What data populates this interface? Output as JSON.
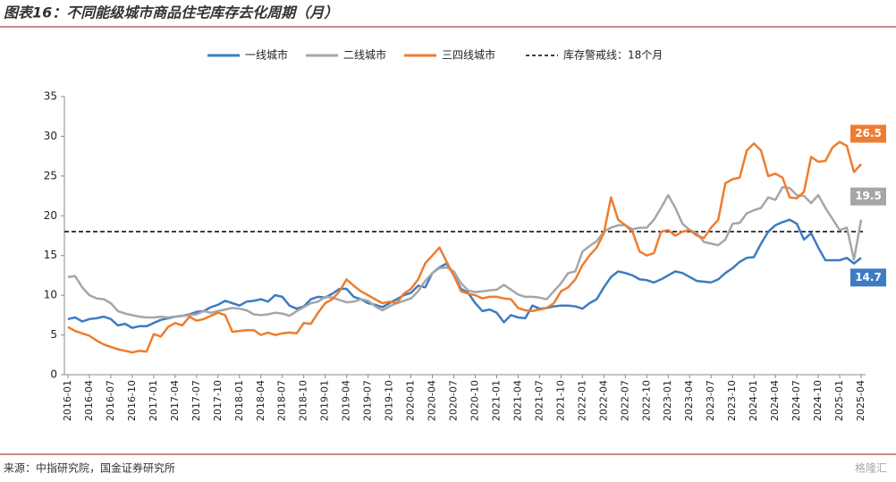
{
  "chart_data": {
    "type": "line",
    "title": "图表16：不同能级城市商品住宅库存去化周期（月）",
    "source": "来源：中指研究院，国金证券研究所",
    "watermark": "格隆汇",
    "reference_line": {
      "name": "库存警戒线：18个月",
      "value": 18
    },
    "categories": [
      "2016-01",
      null,
      null,
      "2016-04",
      null,
      null,
      "2016-07",
      null,
      null,
      "2016-10",
      null,
      null,
      "2017-01",
      null,
      null,
      "2017-04",
      null,
      null,
      "2017-07",
      null,
      null,
      "2017-10",
      null,
      null,
      "2018-01",
      null,
      null,
      "2018-04",
      null,
      null,
      "2018-07",
      null,
      null,
      "2018-10",
      null,
      null,
      "2019-01",
      null,
      null,
      "2019-04",
      null,
      null,
      "2019-07",
      null,
      null,
      "2019-10",
      null,
      null,
      "2020-01",
      null,
      null,
      "2020-04",
      null,
      null,
      "2020-07",
      null,
      null,
      "2020-10",
      null,
      null,
      "2021-01",
      null,
      null,
      "2021-04",
      null,
      null,
      "2021-07",
      null,
      null,
      "2021-10",
      null,
      null,
      "2022-01",
      null,
      null,
      "2022-04",
      null,
      null,
      "2022-07",
      null,
      null,
      "2022-10",
      null,
      null,
      "2023-01",
      null,
      null,
      "2023-04",
      null,
      null,
      "2023-07",
      null,
      null,
      "2023-10",
      null,
      null,
      "2024-01",
      null,
      null,
      "2024-04",
      null,
      null,
      "2024-07",
      null,
      null,
      "2024-10",
      null,
      null,
      "2025-01",
      null,
      null,
      "2025-04"
    ],
    "series": [
      {
        "name": "一线城市",
        "color": "#3e7cc1",
        "values": [
          7.0,
          7.2,
          6.7,
          7.0,
          7.1,
          7.3,
          7.0,
          6.2,
          6.4,
          5.9,
          6.1,
          6.1,
          6.5,
          6.9,
          7.1,
          7.3,
          7.4,
          7.6,
          7.9,
          8.0,
          8.5,
          8.8,
          9.3,
          9.0,
          8.7,
          9.2,
          9.3,
          9.5,
          9.2,
          10.0,
          9.8,
          8.7,
          8.3,
          8.6,
          9.5,
          9.8,
          9.7,
          10.2,
          10.8,
          10.8,
          9.8,
          9.5,
          9.0,
          8.8,
          8.5,
          9.0,
          9.5,
          10.0,
          10.3,
          11.2,
          11.0,
          12.8,
          13.5,
          14.0,
          12.5,
          10.8,
          10.3,
          9.0,
          8.0,
          8.2,
          7.8,
          6.6,
          7.5,
          7.2,
          7.1,
          8.7,
          8.3,
          8.4,
          8.6,
          8.7,
          8.7,
          8.6,
          8.3,
          9.0,
          9.5,
          11.0,
          12.3,
          13.0,
          12.8,
          12.5,
          12.0,
          11.9,
          11.6,
          12.0,
          12.5,
          13.0,
          12.8,
          12.3,
          11.8,
          11.7,
          11.6,
          12.0,
          12.8,
          13.4,
          14.2,
          14.7,
          14.8,
          16.5,
          18.0,
          18.8,
          19.2,
          19.5,
          19.0,
          17.0,
          17.8,
          16.0,
          14.4,
          14.4,
          14.4,
          14.7,
          14.0,
          14.7
        ]
      },
      {
        "name": "二线城市",
        "color": "#a6a6a6",
        "values": [
          12.3,
          12.4,
          11.0,
          10.0,
          9.6,
          9.5,
          9.0,
          8.0,
          7.7,
          7.5,
          7.3,
          7.2,
          7.2,
          7.3,
          7.2,
          7.3,
          7.4,
          7.5,
          7.6,
          8.0,
          7.8,
          8.0,
          8.2,
          8.4,
          8.3,
          8.1,
          7.6,
          7.5,
          7.6,
          7.8,
          7.7,
          7.4,
          8.0,
          8.5,
          9.0,
          9.2,
          9.8,
          9.7,
          9.4,
          9.1,
          9.2,
          9.5,
          9.3,
          8.6,
          8.1,
          8.6,
          9.0,
          9.3,
          9.6,
          10.5,
          11.8,
          12.8,
          13.4,
          13.5,
          13.0,
          11.5,
          10.6,
          10.4,
          10.5,
          10.6,
          10.7,
          11.3,
          10.7,
          10.1,
          9.8,
          9.8,
          9.7,
          9.5,
          10.5,
          11.5,
          12.8,
          13.0,
          15.5,
          16.2,
          16.8,
          18.0,
          18.5,
          18.8,
          18.8,
          18.3,
          18.5,
          18.5,
          19.5,
          21.0,
          22.6,
          21.0,
          19.0,
          18.2,
          17.8,
          16.7,
          16.5,
          16.3,
          17.0,
          19.0,
          19.1,
          20.3,
          20.7,
          21.0,
          22.3,
          22.0,
          23.6,
          23.5,
          22.6,
          22.5,
          21.6,
          22.6,
          21.0,
          19.6,
          18.2,
          18.5,
          14.5,
          19.5
        ]
      },
      {
        "name": "三四线城市",
        "color": "#ed7d31",
        "values": [
          6.0,
          5.5,
          5.2,
          4.9,
          4.3,
          3.8,
          3.5,
          3.2,
          3.0,
          2.8,
          3.0,
          2.9,
          5.1,
          4.8,
          6.0,
          6.5,
          6.2,
          7.3,
          6.8,
          7.0,
          7.4,
          7.8,
          7.5,
          5.4,
          5.5,
          5.6,
          5.6,
          5.0,
          5.3,
          5.0,
          5.2,
          5.3,
          5.2,
          6.5,
          6.4,
          7.8,
          9.0,
          9.5,
          10.5,
          12.0,
          11.2,
          10.5,
          10.0,
          9.5,
          9.0,
          9.2,
          9.0,
          10.2,
          10.8,
          12.0,
          14.0,
          15.0,
          16.0,
          14.2,
          12.5,
          10.5,
          10.2,
          10.0,
          9.6,
          9.8,
          9.8,
          9.6,
          9.5,
          8.4,
          8.1,
          8.0,
          8.2,
          8.4,
          9.0,
          10.5,
          11.0,
          12.0,
          13.8,
          15.0,
          16.0,
          17.8,
          22.3,
          19.5,
          18.8,
          18.0,
          15.5,
          15.0,
          15.3,
          18.0,
          18.2,
          17.5,
          18.0,
          18.2,
          17.5,
          17.2,
          18.5,
          19.5,
          24.1,
          24.6,
          24.8,
          28.2,
          29.1,
          28.2,
          25.0,
          25.3,
          24.8,
          22.3,
          22.2,
          23.0,
          27.4,
          26.8,
          26.9,
          28.6,
          29.3,
          28.8,
          25.5,
          26.5
        ]
      }
    ],
    "ylim": [
      0,
      35
    ],
    "yticks": [
      0,
      5,
      10,
      15,
      20,
      25,
      30,
      35
    ],
    "legend": "top"
  }
}
